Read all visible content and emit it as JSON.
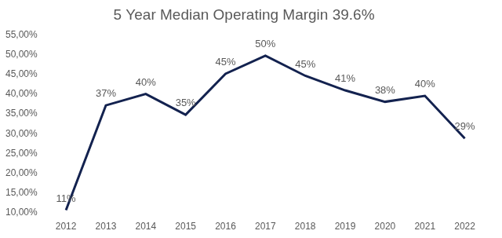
{
  "chart_data": {
    "type": "line",
    "title": "5 Year Median Operating Margin 39.6%",
    "categories": [
      "2012",
      "2013",
      "2014",
      "2015",
      "2016",
      "2017",
      "2018",
      "2019",
      "2020",
      "2021",
      "2022"
    ],
    "values": [
      10.6,
      37.2,
      40.1,
      34.8,
      45.2,
      49.8,
      44.7,
      41.0,
      38.1,
      39.6,
      28.8
    ],
    "value_labels": [
      "11%",
      "37%",
      "40%",
      "35%",
      "45%",
      "50%",
      "45%",
      "41%",
      "38%",
      "40%",
      "29%"
    ],
    "data_labels": true,
    "color": "#13224f",
    "marker": "none",
    "grid": false,
    "ylim": [
      10,
      55
    ],
    "yticks": [
      {
        "value": 10,
        "label": "10,00%"
      },
      {
        "value": 15,
        "label": "15,00%"
      },
      {
        "value": 20,
        "label": "20,00%"
      },
      {
        "value": 25,
        "label": "25,00%"
      },
      {
        "value": 30,
        "label": "30,00%"
      },
      {
        "value": 35,
        "label": "35,00%"
      },
      {
        "value": 40,
        "label": "40,00%"
      },
      {
        "value": 45,
        "label": "45,00%"
      },
      {
        "value": 50,
        "label": "50,00%"
      },
      {
        "value": 55,
        "label": "55,00%"
      }
    ]
  }
}
